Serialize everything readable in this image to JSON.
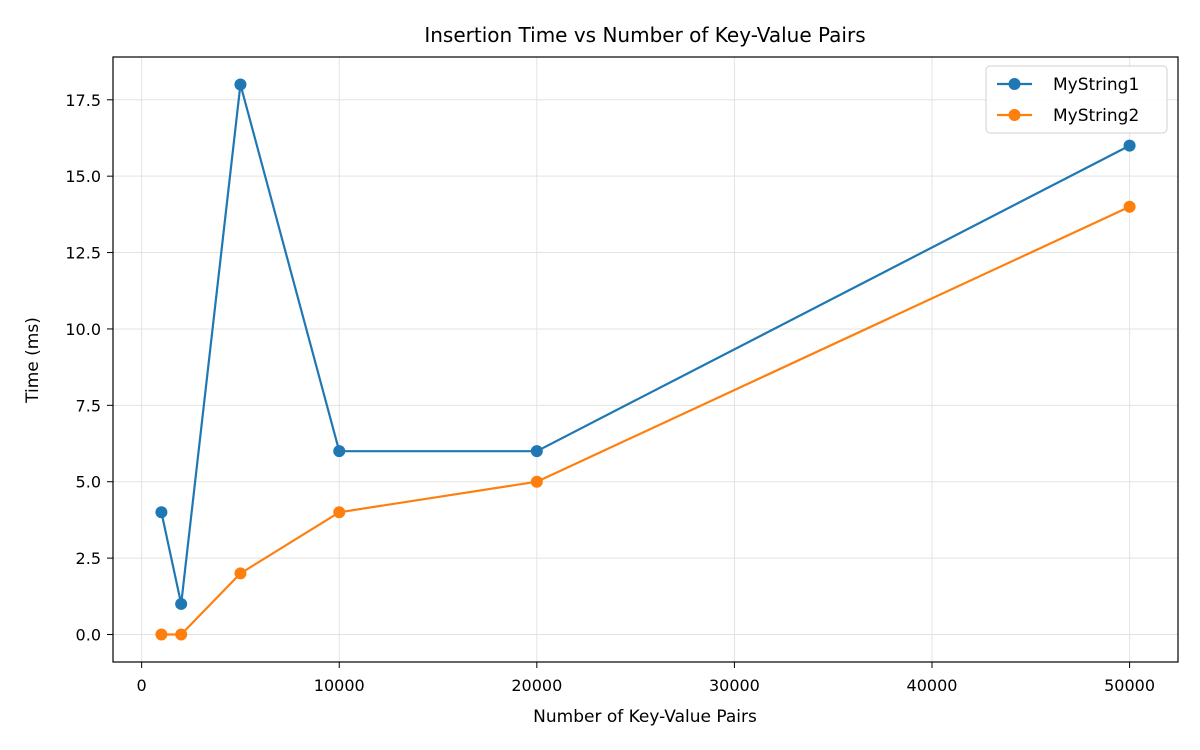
{
  "chart_data": {
    "type": "line",
    "title": "Insertion Time vs Number of Key-Value Pairs",
    "xlabel": "Number of Key-Value Pairs",
    "ylabel": "Time (ms)",
    "xlim": [
      -1450,
      52450
    ],
    "ylim": [
      -0.9,
      18.9
    ],
    "xticks": [
      0,
      10000,
      20000,
      30000,
      40000,
      50000
    ],
    "yticks": [
      0.0,
      2.5,
      5.0,
      7.5,
      10.0,
      12.5,
      15.0,
      17.5
    ],
    "xtick_labels": [
      "0",
      "10000",
      "20000",
      "30000",
      "40000",
      "50000"
    ],
    "ytick_labels": [
      "0.0",
      "2.5",
      "5.0",
      "7.5",
      "10.0",
      "12.5",
      "15.0",
      "17.5"
    ],
    "grid": true,
    "legend_position": "top-right",
    "x": [
      1000,
      2000,
      5000,
      10000,
      20000,
      50000
    ],
    "series": [
      {
        "name": "MyString1",
        "color": "#1f77b4",
        "values": [
          4,
          1,
          18,
          6,
          6,
          16
        ]
      },
      {
        "name": "MyString2",
        "color": "#ff7f0e",
        "values": [
          0,
          0,
          2,
          4,
          5,
          14
        ]
      }
    ]
  }
}
